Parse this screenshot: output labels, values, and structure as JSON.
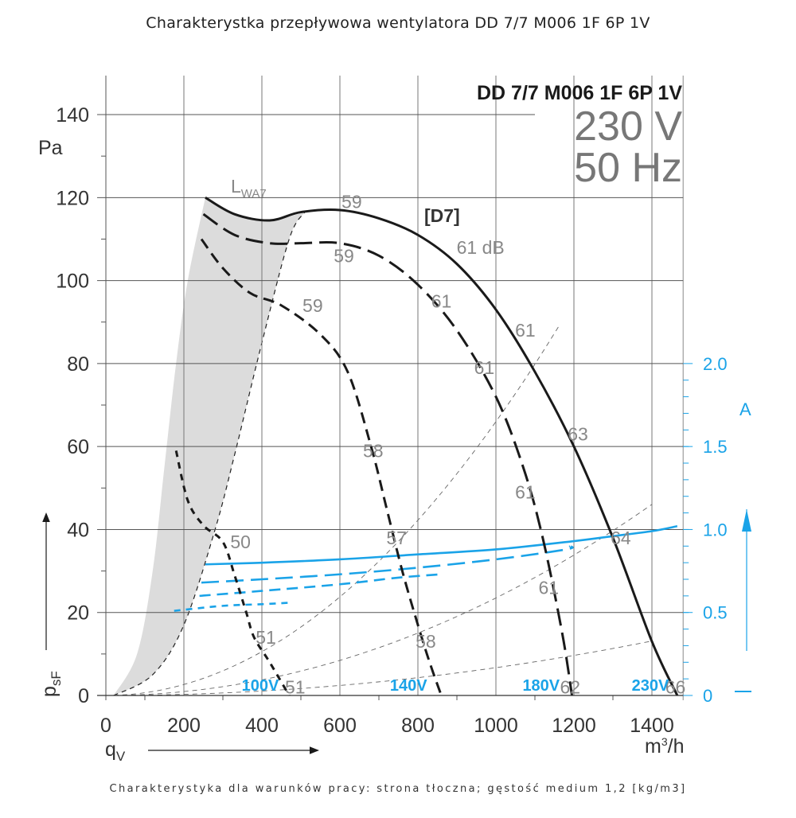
{
  "page": {
    "title": "Charakterystka przepływowa wentylatora DD 7/7 M006 1F 6P 1V",
    "footnote": "Charakterystyka dla warunków pracy: strona tłoczna; gęstość medium 1,2 [kg/m3]"
  },
  "chart_data": {
    "type": "line",
    "title": "DD 7/7 M006 1F 6P 1V",
    "subtitle_voltage": "230 V",
    "subtitle_frequency": "50 Hz",
    "xlabel": "qV",
    "xunit": "m³/h",
    "ylabel": "psF",
    "yunit": "Pa",
    "y2label": "A",
    "xlim": [
      0,
      1480
    ],
    "ylim": [
      0,
      140
    ],
    "y2lim": [
      0,
      2.0
    ],
    "x_ticks": [
      0,
      200,
      400,
      600,
      800,
      1000,
      1200,
      1400
    ],
    "y_ticks": [
      0,
      20,
      40,
      60,
      80,
      100,
      120,
      140
    ],
    "y2_ticks": [
      "0",
      "0.5",
      "1.0",
      "1.5",
      "2.0"
    ],
    "grid": true,
    "curve_label": "[D7]",
    "shaded_region_label": "LWA7",
    "sound_unit": "dB",
    "colors": {
      "pressure": "#1a1a1a",
      "current": "#1aa3e8",
      "grid": "#555555",
      "shade": "#dcdcdc",
      "db": "#888888"
    },
    "series": [
      {
        "name": "230V pressure",
        "voltage_label": "230V",
        "style": "solid",
        "points": [
          [
            255,
            120
          ],
          [
            330,
            116
          ],
          [
            420,
            114.5
          ],
          [
            500,
            116.5
          ],
          [
            600,
            117
          ],
          [
            700,
            115
          ],
          [
            800,
            111
          ],
          [
            900,
            104
          ],
          [
            1000,
            93
          ],
          [
            1100,
            78
          ],
          [
            1200,
            60
          ],
          [
            1300,
            38
          ],
          [
            1400,
            13
          ],
          [
            1465,
            0
          ]
        ]
      },
      {
        "name": "180V pressure",
        "voltage_label": "180V",
        "style": "dash-long",
        "points": [
          [
            250,
            116
          ],
          [
            330,
            111
          ],
          [
            420,
            109
          ],
          [
            500,
            109
          ],
          [
            600,
            109
          ],
          [
            700,
            106
          ],
          [
            800,
            99
          ],
          [
            900,
            88
          ],
          [
            1000,
            72
          ],
          [
            1070,
            55
          ],
          [
            1120,
            38
          ],
          [
            1170,
            15
          ],
          [
            1195,
            0
          ]
        ]
      },
      {
        "name": "140V pressure",
        "voltage_label": "140V",
        "style": "dash-medium",
        "points": [
          [
            245,
            110
          ],
          [
            300,
            103
          ],
          [
            370,
            97
          ],
          [
            450,
            94
          ],
          [
            550,
            87
          ],
          [
            620,
            78
          ],
          [
            680,
            60
          ],
          [
            720,
            45
          ],
          [
            760,
            30
          ],
          [
            800,
            17
          ],
          [
            830,
            8
          ],
          [
            860,
            0
          ]
        ]
      },
      {
        "name": "100V pressure",
        "voltage_label": "100V",
        "style": "dash-short",
        "points": [
          [
            180,
            59
          ],
          [
            210,
            47
          ],
          [
            250,
            41
          ],
          [
            300,
            37
          ],
          [
            330,
            29
          ],
          [
            360,
            20
          ],
          [
            380,
            14
          ],
          [
            420,
            8
          ],
          [
            470,
            0
          ]
        ]
      },
      {
        "name": "230V current",
        "style": "solid",
        "current_A": [
          [
            255,
            0.79
          ],
          [
            400,
            0.8
          ],
          [
            600,
            0.82
          ],
          [
            800,
            0.85
          ],
          [
            1000,
            0.88
          ],
          [
            1200,
            0.93
          ],
          [
            1300,
            0.96
          ],
          [
            1400,
            0.99
          ],
          [
            1465,
            1.02
          ]
        ]
      },
      {
        "name": "180V current",
        "style": "dash-long",
        "current_A": [
          [
            245,
            0.68
          ],
          [
            400,
            0.7
          ],
          [
            600,
            0.73
          ],
          [
            800,
            0.77
          ],
          [
            1000,
            0.82
          ],
          [
            1180,
            0.88
          ],
          [
            1190,
            0.9
          ]
        ]
      },
      {
        "name": "140V current",
        "style": "dash-medium",
        "current_A": [
          [
            240,
            0.6
          ],
          [
            400,
            0.63
          ],
          [
            600,
            0.67
          ],
          [
            750,
            0.71
          ],
          [
            860,
            0.73
          ]
        ]
      },
      {
        "name": "100V current",
        "style": "dash-short",
        "current_A": [
          [
            175,
            0.51
          ],
          [
            300,
            0.54
          ],
          [
            400,
            0.55
          ],
          [
            480,
            0.56
          ]
        ]
      }
    ],
    "system_curves": [
      {
        "name": "system line 1",
        "k": 6.6e-05
      },
      {
        "name": "system line 2",
        "k": 2.35e-05
      },
      {
        "name": "system line 3",
        "k": 6.7e-06
      }
    ],
    "shaded_region": {
      "label": "LWA7",
      "left_edge": [
        [
          20,
          0
        ],
        [
          80,
          10
        ],
        [
          120,
          30
        ],
        [
          150,
          55
        ],
        [
          180,
          80
        ],
        [
          210,
          100
        ],
        [
          255,
          120
        ]
      ],
      "right_edge": [
        [
          20,
          0
        ],
        [
          120,
          5
        ],
        [
          200,
          17
        ],
        [
          280,
          40
        ],
        [
          330,
          58
        ],
        [
          400,
          85
        ],
        [
          470,
          110
        ],
        [
          510,
          116.5
        ]
      ]
    },
    "db_labels": [
      {
        "text": "59",
        "x": 645,
        "y": 119
      },
      {
        "text": "59",
        "x": 625,
        "y": 106
      },
      {
        "text": "59",
        "x": 545,
        "y": 94
      },
      {
        "text": "61 dB",
        "x": 940,
        "y": 108
      },
      {
        "text": "61",
        "x": 875,
        "y": 95
      },
      {
        "text": "61",
        "x": 1090,
        "y": 88
      },
      {
        "text": "61",
        "x": 985,
        "y": 79
      },
      {
        "text": "58",
        "x": 700,
        "y": 59
      },
      {
        "text": "63",
        "x": 1225,
        "y": 63
      },
      {
        "text": "61",
        "x": 1090,
        "y": 49
      },
      {
        "text": "50",
        "x": 360,
        "y": 37
      },
      {
        "text": "57",
        "x": 760,
        "y": 38
      },
      {
        "text": "64",
        "x": 1335,
        "y": 38
      },
      {
        "text": "61",
        "x": 1150,
        "y": 26
      },
      {
        "text": "51",
        "x": 425,
        "y": 14
      },
      {
        "text": "58",
        "x": 835,
        "y": 13
      },
      {
        "text": "51",
        "x": 500,
        "y": 2
      },
      {
        "text": "62",
        "x": 1205,
        "y": 2
      },
      {
        "text": "66",
        "x": 1475,
        "y": 2
      }
    ],
    "voltage_labels": [
      {
        "text": "100V",
        "x": 400
      },
      {
        "text": "140V",
        "x": 780
      },
      {
        "text": "180V",
        "x": 1120
      },
      {
        "text": "230V",
        "x": 1400
      }
    ]
  }
}
